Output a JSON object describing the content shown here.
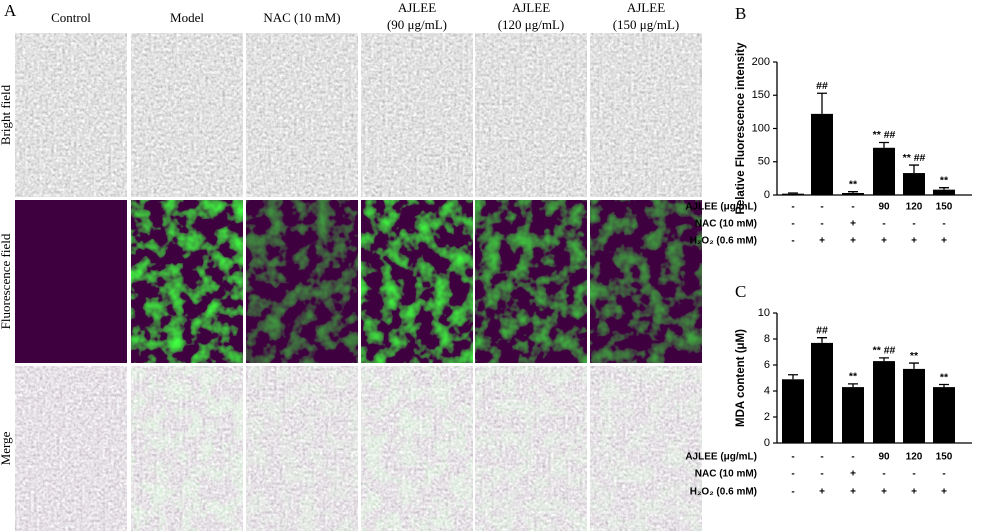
{
  "panel_a": {
    "letter": "A",
    "columns": [
      [
        "Control"
      ],
      [
        "Model"
      ],
      [
        "NAC (10 mM)"
      ],
      [
        "AJLEE",
        "(90 μg/mL)"
      ],
      [
        "AJLEE",
        "(120 μg/mL)"
      ],
      [
        "AJLEE",
        "(150 μg/mL)"
      ]
    ],
    "rows": [
      "Bright field",
      "Fluorescence field",
      "Merge"
    ]
  },
  "chart_data": [
    {
      "type": "bar",
      "panel": "B",
      "y_label": "Relative Fluorescence intensity",
      "values": [
        2,
        122,
        3,
        71,
        33,
        8
      ],
      "errors": [
        1,
        31,
        2,
        8,
        12,
        3
      ],
      "annotations": [
        null,
        "##",
        "**",
        "** ##",
        "** ##",
        "**"
      ],
      "color": "#000000",
      "ylim": [
        0,
        200
      ],
      "yticks": [
        0,
        50,
        100,
        150,
        200
      ],
      "treatments": [
        {
          "label": "AJLEE (μg/mL)",
          "values": [
            "-",
            "-",
            "-",
            "90",
            "120",
            "150"
          ]
        },
        {
          "label": "NAC (10 mM)",
          "values": [
            "-",
            "-",
            "+",
            "-",
            "-",
            "-"
          ]
        },
        {
          "label": "H₂O₂ (0.6 mM)",
          "values": [
            "-",
            "+",
            "+",
            "+",
            "+",
            "+"
          ]
        }
      ]
    },
    {
      "type": "bar",
      "panel": "C",
      "y_label": "MDA content (μM)",
      "values": [
        4.9,
        7.7,
        4.3,
        6.3,
        5.7,
        4.3
      ],
      "errors": [
        0.35,
        0.4,
        0.25,
        0.25,
        0.45,
        0.2
      ],
      "annotations": [
        null,
        "##",
        "**",
        "** ##",
        "**",
        "**"
      ],
      "color": "#000000",
      "ylim": [
        0,
        10
      ],
      "yticks": [
        0,
        2,
        4,
        6,
        8,
        10
      ],
      "treatments": [
        {
          "label": "AJLEE (μg/mL)",
          "values": [
            "-",
            "-",
            "-",
            "90",
            "120",
            "150"
          ]
        },
        {
          "label": "NAC (10 mM)",
          "values": [
            "-",
            "-",
            "+",
            "-",
            "-",
            "-"
          ]
        },
        {
          "label": "H₂O₂ (0.6 mM)",
          "values": [
            "-",
            "+",
            "+",
            "+",
            "+",
            "+"
          ]
        }
      ]
    }
  ]
}
